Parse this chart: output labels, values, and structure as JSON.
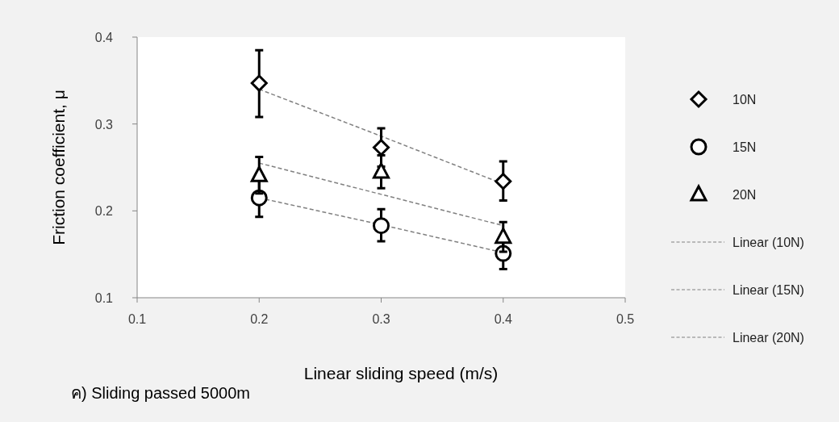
{
  "chart_data": {
    "type": "scatter",
    "xlabel": "Linear sliding speed (m/s)",
    "ylabel": "Friction coefficient, μ",
    "annotations": [
      "ค) Sliding passed 5000m"
    ],
    "x": [
      0.2,
      0.3,
      0.4
    ],
    "xlim": [
      0.1,
      0.5
    ],
    "xticks": [
      0.1,
      0.2,
      0.3,
      0.4,
      0.5
    ],
    "ylim": [
      0.1,
      0.4
    ],
    "yticks": [
      0.1,
      0.2,
      0.3,
      0.4
    ],
    "grid": false,
    "legend": "right",
    "series": [
      {
        "name": "10N",
        "type": "scatter",
        "marker": "diamond",
        "color": "#000000",
        "values": [
          0.347,
          0.273,
          0.234
        ],
        "errors": [
          [
            0.308,
            0.385
          ],
          [
            0.251,
            0.295
          ],
          [
            0.212,
            0.257
          ]
        ]
      },
      {
        "name": "15N",
        "marker": "circle",
        "color": "#000000",
        "values": [
          0.215,
          0.183,
          0.151
        ],
        "errors": [
          [
            0.193,
            0.237
          ],
          [
            0.165,
            0.202
          ],
          [
            0.133,
            0.169
          ]
        ]
      },
      {
        "name": "20N",
        "marker": "triangle",
        "color": "#000000",
        "values": [
          0.241,
          0.245,
          0.17
        ],
        "errors": [
          [
            0.22,
            0.262
          ],
          [
            0.226,
            0.264
          ],
          [
            0.153,
            0.187
          ]
        ]
      },
      {
        "name": "Linear (10N)",
        "type": "line",
        "line_style": "dashed",
        "color": "#808080",
        "values": [
          0.34,
          0.286,
          0.231
        ]
      },
      {
        "name": "Linear (15N)",
        "type": "line",
        "line_style": "dashed",
        "color": "#808080",
        "values": [
          0.215,
          0.184,
          0.152
        ]
      },
      {
        "name": "Linear (20N)",
        "type": "line",
        "line_style": "dashed",
        "color": "#808080",
        "values": [
          0.255,
          0.219,
          0.183
        ]
      }
    ]
  }
}
